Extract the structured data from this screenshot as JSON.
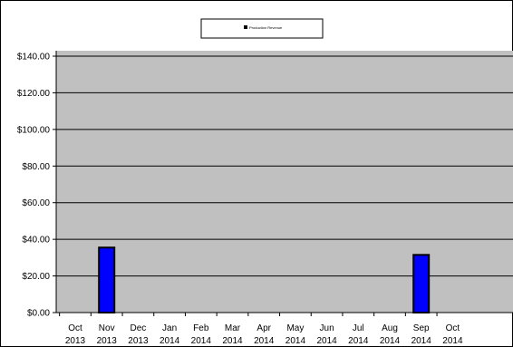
{
  "chart_data": {
    "type": "bar",
    "title": "",
    "xlabel": "",
    "ylabel": "",
    "categories": [
      [
        "Oct",
        "2013"
      ],
      [
        "Nov",
        "2013"
      ],
      [
        "Dec",
        "2013"
      ],
      [
        "Jan",
        "2014"
      ],
      [
        "Feb",
        "2014"
      ],
      [
        "Mar",
        "2014"
      ],
      [
        "Apr",
        "2014"
      ],
      [
        "May",
        "2014"
      ],
      [
        "Jun",
        "2014"
      ],
      [
        "Jul",
        "2014"
      ],
      [
        "Aug",
        "2014"
      ],
      [
        "Sep",
        "2014"
      ],
      [
        "Oct",
        "2014"
      ]
    ],
    "series": [
      {
        "name": "Production Revenue",
        "color": "#0000ff",
        "values": [
          0,
          35.5,
          0,
          0,
          0,
          0,
          0,
          0,
          0,
          0,
          0,
          31.5,
          0
        ]
      }
    ],
    "ylim": [
      0,
      140
    ],
    "yticks": [
      0,
      20,
      40,
      60,
      80,
      100,
      120,
      140
    ],
    "ytick_labels": [
      "$0.00",
      "$20.00",
      "$40.00",
      "$60.00",
      "$80.00",
      "$100.00",
      "$120.00",
      "$140.00"
    ],
    "grid": true,
    "legend_position": "top-center",
    "plot_background": "#c0c0c0"
  }
}
